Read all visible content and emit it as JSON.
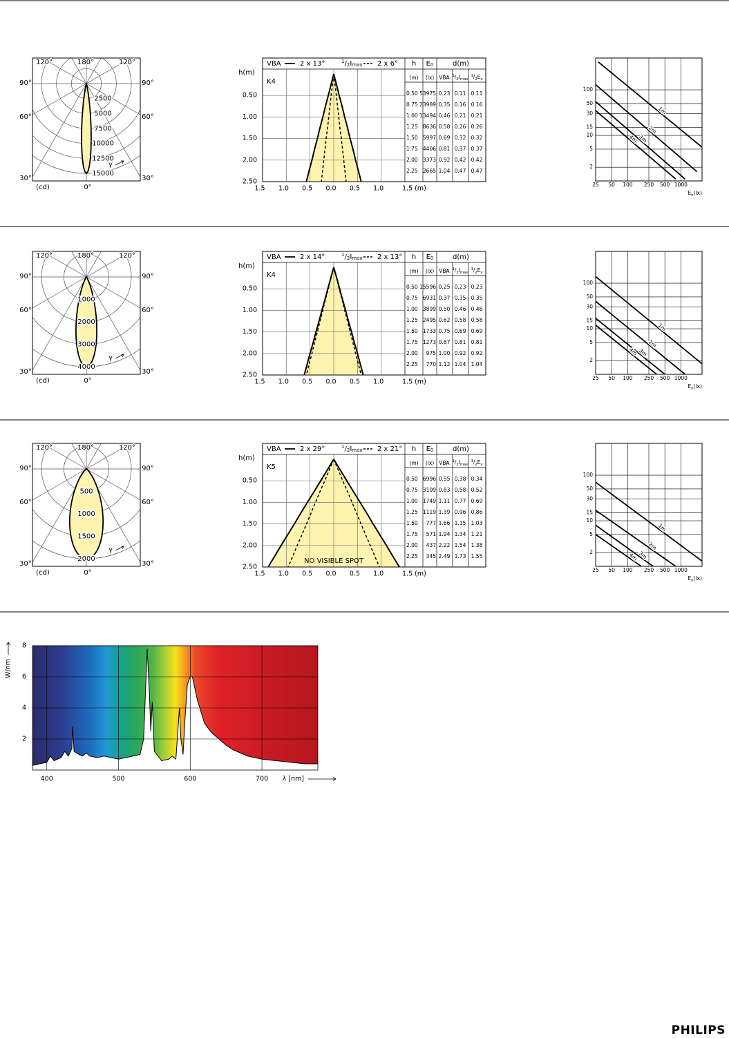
{
  "polar_labels": {
    "top": [
      "120°",
      "180°",
      "120°"
    ],
    "side": [
      "90°",
      "60°",
      "30°"
    ],
    "unit": "(cd)",
    "zero": "0°",
    "gamma": "γ"
  },
  "cone_common": {
    "vba": "VBA",
    "half_imax": {
      "num": "1",
      "sep": "/",
      "den": "2",
      "main": "I",
      "sub": "max"
    },
    "ylabel": "h(m)",
    "ylim": [
      0,
      2.5
    ],
    "xlim": [
      -1.5,
      1.5
    ],
    "yticks": [
      {
        "value": 0.5,
        "label": "0.50"
      },
      {
        "value": 1,
        "label": "1.00"
      },
      {
        "value": 1.5,
        "label": "1.50"
      },
      {
        "value": 2,
        "label": "2.00"
      },
      {
        "value": 2.5,
        "label": "2.50"
      }
    ],
    "xticks": [
      {
        "value": -1.5,
        "label": "1.5"
      },
      {
        "value": -1,
        "label": "1.0"
      },
      {
        "value": -0.5,
        "label": "0.5"
      },
      {
        "value": 0,
        "label": "0.0"
      },
      {
        "value": 0.5,
        "label": "0.5"
      },
      {
        "value": 1,
        "label": "1.0"
      },
      {
        "value": 1.5,
        "label": "1.5 (m)"
      }
    ],
    "table_header": {
      "h": "h",
      "e0": {
        "main": "E",
        "sub": "0"
      },
      "d": "d(m)",
      "units": [
        "(m)",
        "(lx)"
      ],
      "vba": "VBA",
      "half_imax": {
        "num": "1",
        "sep": "/",
        "den": "2",
        "main": "I",
        "sub": "max"
      },
      "half_ev": {
        "num": "1",
        "sep": "/",
        "den": "2",
        "main": "E",
        "sub": "v"
      }
    }
  },
  "isolux_common": {
    "log": true,
    "xlim": [
      25,
      2500
    ],
    "ylim": [
      1,
      500
    ],
    "xticks": [
      25,
      50,
      100,
      250,
      500,
      1000
    ],
    "yticks": [
      2,
      5,
      10,
      15,
      30,
      50,
      100
    ],
    "xlabel": {
      "main": "E",
      "sub": "h",
      "unit": "(lx)"
    }
  },
  "rows": [
    {
      "polar": {
        "rings": [
          2500,
          5000,
          7500,
          10000,
          12500,
          15000
        ]
      },
      "cone": {
        "class": "K4",
        "vba_angle": "2 x 13°",
        "half_angle": "2 x 6°",
        "table": [
          [
            "0.50",
            "53975",
            "0.23",
            "0.11",
            "0.11"
          ],
          [
            "0.75",
            "23989",
            "0.35",
            "0.16",
            "0.16"
          ],
          [
            "1.00",
            "13494",
            "0.46",
            "0.21",
            "0.21"
          ],
          [
            "1.25",
            "8636",
            "0.58",
            "0.26",
            "0.26"
          ],
          [
            "1.50",
            "5997",
            "0.69",
            "0.32",
            "0.32"
          ],
          [
            "1.75",
            "4406",
            "0.81",
            "0.37",
            "0.37"
          ],
          [
            "2.00",
            "3373",
            "0.92",
            "0.42",
            "0.42"
          ],
          [
            "2.25",
            "2665",
            "1.04",
            "0.47",
            "0.47"
          ]
        ]
      },
      "isolux": {
        "lines": [
          {
            "label": "1m",
            "points": [
              [
                28,
                410
              ],
              [
                2500,
                5.5
              ]
            ]
          },
          {
            "label": "2m",
            "points": [
              [
                25,
                130
              ],
              [
                2000,
                1.6
              ]
            ]
          },
          {
            "label": "3m",
            "points": [
              [
                25,
                55
              ],
              [
                1200,
                1.1
              ]
            ]
          },
          {
            "label": "4m",
            "points": [
              [
                25,
                35
              ],
              [
                800,
                1.1
              ]
            ]
          }
        ]
      }
    },
    {
      "polar": {
        "rings": [
          1000,
          2000,
          3000,
          4000
        ]
      },
      "cone": {
        "class": "K4",
        "vba_angle": "2 x 14°",
        "half_angle": "2 x 13°",
        "table": [
          [
            "0.50",
            "15596",
            "0.25",
            "0.23",
            "0.23"
          ],
          [
            "0.75",
            "6931",
            "0.37",
            "0.35",
            "0.35"
          ],
          [
            "1.00",
            "3899",
            "0.50",
            "0.46",
            "0.46"
          ],
          [
            "1.25",
            "2495",
            "0.62",
            "0.58",
            "0.58"
          ],
          [
            "1.50",
            "1733",
            "0.75",
            "0.69",
            "0.69"
          ],
          [
            "1.75",
            "1273",
            "0.87",
            "0.81",
            "0.81"
          ],
          [
            "2.00",
            "975",
            "1.00",
            "0.92",
            "0.92"
          ],
          [
            "2.25",
            "770",
            "1.12",
            "1.04",
            "1.04"
          ]
        ]
      },
      "isolux": {
        "lines": [
          {
            "label": "1m",
            "points": [
              [
                25,
                140
              ],
              [
                2500,
                1.7
              ]
            ]
          },
          {
            "label": "2m",
            "points": [
              [
                25,
                40
              ],
              [
                1200,
                1
              ]
            ]
          },
          {
            "label": "3m",
            "points": [
              [
                25,
                17
              ],
              [
                500,
                1
              ]
            ]
          },
          {
            "label": "4m",
            "points": [
              [
                25,
                12
              ],
              [
                350,
                1
              ]
            ]
          }
        ]
      }
    },
    {
      "polar": {
        "rings": [
          500,
          1000,
          1500,
          2000
        ]
      },
      "cone": {
        "class": "K5",
        "vba_angle": "2 x 29°",
        "half_angle": "2 x 21°",
        "annotation": "NO VISIBLE SPOT",
        "table": [
          [
            "0.50",
            "6996",
            "0.55",
            "0.38",
            "0.34"
          ],
          [
            "0.75",
            "3109",
            "0.83",
            "0.58",
            "0.52"
          ],
          [
            "1.00",
            "1749",
            "1.11",
            "0.77",
            "0.69"
          ],
          [
            "1.25",
            "1119",
            "1.39",
            "0.96",
            "0.86"
          ],
          [
            "1.50",
            "777",
            "1.66",
            "1.15",
            "1.03"
          ],
          [
            "1.75",
            "571",
            "1.94",
            "1.34",
            "1.21"
          ],
          [
            "2.00",
            "437",
            "2.22",
            "1.54",
            "1.38"
          ],
          [
            "2.25",
            "345",
            "2.49",
            "1.73",
            "1.55"
          ]
        ]
      },
      "isolux": {
        "lines": [
          {
            "label": "1m",
            "points": [
              [
                25,
                70
              ],
              [
                2500,
                1.3
              ]
            ]
          },
          {
            "label": "2m",
            "points": [
              [
                25,
                17
              ],
              [
                800,
                1
              ]
            ]
          },
          {
            "label": "3m",
            "points": [
              [
                25,
                8
              ],
              [
                300,
                1
              ]
            ]
          },
          {
            "label": "4m",
            "points": [
              [
                25,
                5
              ],
              [
                180,
                1
              ]
            ]
          }
        ]
      }
    }
  ],
  "spectrum": {
    "type": "area",
    "ylabel": "W/nm",
    "xlabel": "λ [nm]",
    "xlim": [
      380,
      778
    ],
    "ylim": [
      0,
      8
    ],
    "xticks": [
      400,
      500,
      600,
      700
    ],
    "yticks": [
      2,
      4,
      6,
      8
    ],
    "x": [
      380,
      390,
      400,
      405,
      410,
      420,
      425,
      430,
      435,
      436,
      438,
      445,
      450,
      455,
      460,
      470,
      480,
      490,
      500,
      510,
      520,
      530,
      535,
      540,
      543,
      545,
      547,
      550,
      560,
      570,
      575,
      580,
      585,
      587,
      590,
      593,
      596,
      600,
      603,
      610,
      620,
      630,
      640,
      650,
      660,
      670,
      680,
      690,
      700,
      720,
      740,
      760,
      778
    ],
    "values": [
      0.3,
      0.4,
      0.5,
      0.9,
      0.6,
      0.8,
      1.2,
      0.9,
      1.4,
      2.8,
      1.2,
      1.0,
      0.9,
      1.1,
      0.9,
      0.8,
      0.9,
      0.8,
      0.7,
      0.8,
      0.9,
      1.0,
      2.0,
      7.8,
      5.0,
      2.5,
      4.4,
      1.2,
      0.6,
      0.7,
      0.9,
      0.7,
      4.0,
      2.0,
      1.0,
      3.5,
      5.5,
      6.0,
      6.0,
      4.5,
      3.0,
      2.4,
      2.0,
      1.6,
      1.3,
      1.1,
      0.9,
      0.8,
      0.7,
      0.6,
      0.5,
      0.4,
      0.4
    ]
  },
  "brand": "PHILIPS"
}
